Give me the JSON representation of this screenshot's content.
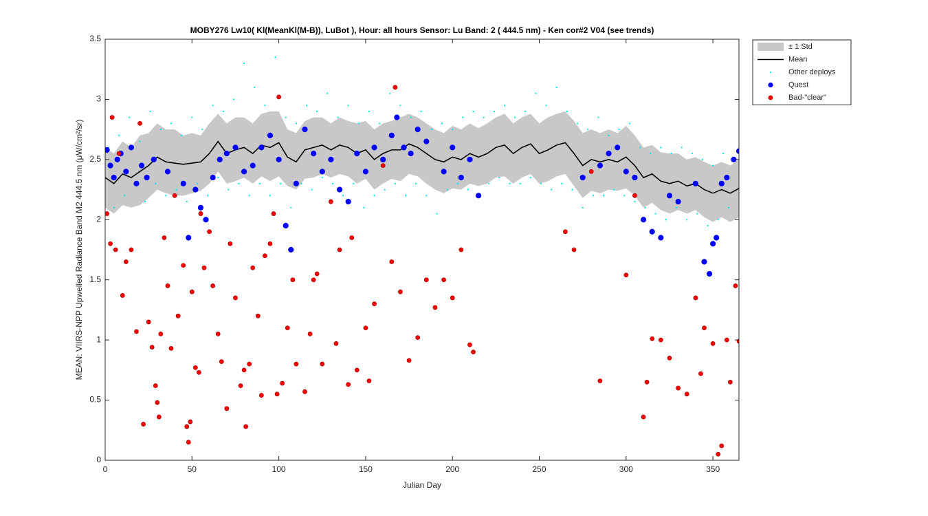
{
  "chart_data": {
    "type": "scatter",
    "title": "MOBY276   Lw10( Kl(MeanKl(M-B)), LuBot ),   Hour: all hours  Sensor: Lu Band: 2 ( 444.5 nm)  - Ken cor#2 V04 (see trends)",
    "xlabel": "Julian Day",
    "ylabel": "MEAN: VIIRS-NPP Upwelled Radiance Band M2 444.5 nm (μW/cm²/sr)",
    "xlim": [
      0,
      365
    ],
    "ylim": [
      0,
      3.5
    ],
    "xticks": [
      0,
      50,
      100,
      150,
      200,
      250,
      300,
      350
    ],
    "yticks": [
      0,
      0.5,
      1,
      1.5,
      2,
      2.5,
      3,
      3.5
    ],
    "grid": false,
    "legend": "northeastoutside",
    "series": [
      {
        "name": "± 1 Std",
        "kind": "band",
        "color": "#c8c8c8",
        "x": [
          0,
          5,
          10,
          15,
          20,
          25,
          30,
          35,
          40,
          45,
          50,
          55,
          60,
          65,
          70,
          75,
          80,
          85,
          90,
          95,
          100,
          105,
          110,
          115,
          120,
          125,
          130,
          135,
          140,
          145,
          150,
          155,
          160,
          165,
          170,
          175,
          180,
          185,
          190,
          195,
          200,
          205,
          210,
          215,
          220,
          225,
          230,
          235,
          240,
          245,
          250,
          255,
          260,
          265,
          270,
          275,
          280,
          285,
          290,
          295,
          300,
          305,
          310,
          315,
          320,
          325,
          330,
          335,
          340,
          345,
          350,
          355,
          360,
          365
        ],
        "values": [
          2.1,
          2.05,
          2.12,
          2.1,
          2.12,
          2.18,
          2.25,
          2.22,
          2.2,
          2.2,
          2.22,
          2.24,
          2.3,
          2.4,
          2.3,
          2.32,
          2.35,
          2.3,
          2.36,
          2.32,
          2.36,
          2.28,
          2.25,
          2.34,
          2.35,
          2.38,
          2.35,
          2.38,
          2.36,
          2.3,
          2.34,
          2.25,
          2.3,
          2.34,
          2.32,
          2.38,
          2.36,
          2.3,
          2.25,
          2.22,
          2.26,
          2.25,
          2.3,
          2.28,
          2.3,
          2.35,
          2.36,
          2.3,
          2.35,
          2.38,
          2.3,
          2.32,
          2.36,
          2.38,
          2.28,
          2.18,
          2.24,
          2.22,
          2.25,
          2.24,
          2.26,
          2.2,
          2.1,
          2.14,
          2.08,
          2.05,
          2.08,
          2.05,
          2.08,
          2.02,
          1.98,
          2.02,
          1.98,
          2.02
        ],
        "upper": [
          2.6,
          2.55,
          2.65,
          2.6,
          2.7,
          2.72,
          2.8,
          2.75,
          2.75,
          2.7,
          2.72,
          2.7,
          2.8,
          2.88,
          2.8,
          2.85,
          2.85,
          2.8,
          2.88,
          2.9,
          2.9,
          2.75,
          2.72,
          2.82,
          2.85,
          2.85,
          2.8,
          2.85,
          2.82,
          2.8,
          2.82,
          2.75,
          2.8,
          2.82,
          2.85,
          2.88,
          2.85,
          2.8,
          2.75,
          2.72,
          2.78,
          2.75,
          2.8,
          2.76,
          2.8,
          2.85,
          2.88,
          2.8,
          2.85,
          2.88,
          2.8,
          2.85,
          2.88,
          2.9,
          2.82,
          2.72,
          2.75,
          2.72,
          2.75,
          2.72,
          2.78,
          2.7,
          2.6,
          2.62,
          2.56,
          2.55,
          2.55,
          2.5,
          2.52,
          2.48,
          2.45,
          2.48,
          2.45,
          2.5
        ]
      },
      {
        "name": "Mean",
        "kind": "line",
        "color": "#000000",
        "x": [
          0,
          5,
          10,
          15,
          20,
          25,
          30,
          35,
          40,
          45,
          50,
          55,
          60,
          65,
          70,
          75,
          80,
          85,
          90,
          95,
          100,
          105,
          110,
          115,
          120,
          125,
          130,
          135,
          140,
          145,
          150,
          155,
          160,
          165,
          170,
          175,
          180,
          185,
          190,
          195,
          200,
          205,
          210,
          215,
          220,
          225,
          230,
          235,
          240,
          245,
          250,
          255,
          260,
          265,
          270,
          275,
          280,
          285,
          290,
          295,
          300,
          305,
          310,
          315,
          320,
          325,
          330,
          335,
          340,
          345,
          350,
          355,
          360,
          365
        ],
        "values": [
          2.35,
          2.3,
          2.38,
          2.35,
          2.4,
          2.45,
          2.52,
          2.48,
          2.47,
          2.46,
          2.47,
          2.48,
          2.55,
          2.65,
          2.55,
          2.58,
          2.6,
          2.55,
          2.62,
          2.6,
          2.64,
          2.52,
          2.48,
          2.58,
          2.6,
          2.62,
          2.58,
          2.62,
          2.6,
          2.55,
          2.58,
          2.5,
          2.55,
          2.58,
          2.58,
          2.63,
          2.6,
          2.55,
          2.5,
          2.48,
          2.52,
          2.5,
          2.55,
          2.52,
          2.55,
          2.6,
          2.62,
          2.55,
          2.6,
          2.63,
          2.55,
          2.58,
          2.62,
          2.64,
          2.55,
          2.45,
          2.5,
          2.48,
          2.5,
          2.48,
          2.52,
          2.45,
          2.35,
          2.38,
          2.32,
          2.3,
          2.32,
          2.28,
          2.3,
          2.25,
          2.22,
          2.25,
          2.22,
          2.26
        ]
      },
      {
        "name": "Other deploys",
        "kind": "dots",
        "color": "#00e5ee",
        "x": [
          2,
          5,
          8,
          11,
          14,
          17,
          20,
          23,
          26,
          29,
          32,
          35,
          38,
          41,
          44,
          47,
          50,
          53,
          56,
          59,
          62,
          65,
          68,
          71,
          74,
          77,
          80,
          83,
          86,
          89,
          92,
          95,
          98,
          101,
          104,
          107,
          110,
          113,
          116,
          119,
          122,
          125,
          128,
          131,
          134,
          137,
          140,
          143,
          146,
          149,
          152,
          155,
          158,
          161,
          164,
          167,
          170,
          173,
          176,
          179,
          182,
          185,
          188,
          191,
          194,
          197,
          200,
          203,
          206,
          209,
          212,
          215,
          218,
          221,
          224,
          227,
          230,
          233,
          236,
          239,
          242,
          245,
          248,
          251,
          254,
          257,
          260,
          263,
          266,
          269,
          272,
          275,
          278,
          281,
          284,
          287,
          290,
          293,
          296,
          299,
          302,
          305,
          308,
          311,
          314,
          317,
          320,
          323,
          326,
          329,
          332,
          335,
          338,
          341,
          344,
          347,
          350,
          353,
          356,
          359,
          362
        ],
        "values": [
          2.6,
          2.1,
          2.7,
          2.2,
          2.85,
          2.3,
          2.65,
          2.15,
          2.9,
          2.3,
          2.75,
          2.2,
          2.8,
          2.25,
          2.7,
          2.15,
          2.85,
          2.3,
          2.75,
          2.2,
          2.95,
          2.35,
          2.9,
          2.25,
          3.0,
          2.3,
          3.3,
          2.2,
          3.1,
          2.3,
          2.95,
          2.2,
          3.35,
          2.3,
          2.85,
          2.1,
          2.8,
          2.3,
          2.95,
          2.25,
          2.9,
          2.35,
          3.05,
          2.3,
          2.85,
          2.2,
          2.95,
          2.3,
          2.8,
          2.1,
          2.9,
          2.2,
          2.8,
          2.25,
          3.05,
          2.3,
          2.95,
          2.2,
          2.85,
          2.3,
          2.9,
          2.2,
          2.75,
          2.05,
          2.8,
          2.25,
          2.75,
          2.3,
          2.85,
          2.25,
          2.9,
          2.2,
          2.85,
          2.3,
          2.9,
          2.35,
          2.95,
          2.3,
          2.85,
          2.3,
          2.9,
          2.35,
          3.05,
          2.3,
          2.95,
          2.25,
          3.1,
          2.3,
          2.9,
          2.25,
          2.8,
          2.1,
          2.75,
          2.2,
          2.85,
          2.2,
          2.7,
          2.25,
          2.75,
          2.2,
          2.8,
          2.15,
          2.6,
          2.1,
          2.55,
          2.05,
          2.6,
          2.0,
          2.55,
          2.1,
          2.6,
          2.0,
          2.55,
          2.05,
          2.5,
          1.95,
          2.45,
          2.0,
          2.55,
          2.1,
          2.5
        ]
      },
      {
        "name": "Quest",
        "kind": "quest",
        "color": "#0000ff",
        "x": [
          1,
          3,
          5,
          7,
          9,
          12,
          15,
          18,
          21,
          24,
          28,
          36,
          45,
          48,
          52,
          55,
          58,
          62,
          66,
          70,
          75,
          80,
          85,
          90,
          95,
          100,
          104,
          107,
          110,
          115,
          120,
          125,
          130,
          135,
          140,
          145,
          150,
          155,
          160,
          165,
          168,
          172,
          176,
          180,
          185,
          195,
          200,
          205,
          210,
          215,
          275,
          285,
          290,
          295,
          300,
          305,
          310,
          315,
          320,
          325,
          330,
          340,
          345,
          348,
          350,
          352,
          355,
          358,
          362,
          365
        ],
        "values": [
          2.58,
          2.45,
          2.35,
          2.5,
          2.55,
          2.4,
          2.6,
          2.3,
          2.45,
          2.35,
          2.5,
          2.4,
          2.3,
          1.85,
          2.25,
          2.1,
          2.0,
          2.35,
          2.5,
          2.55,
          2.6,
          2.4,
          2.45,
          2.6,
          2.7,
          2.5,
          1.95,
          1.75,
          2.3,
          2.75,
          2.55,
          2.4,
          2.5,
          2.25,
          2.15,
          2.55,
          2.4,
          2.6,
          2.5,
          2.7,
          2.85,
          2.6,
          2.55,
          2.75,
          2.65,
          2.4,
          2.6,
          2.35,
          2.5,
          2.2,
          2.35,
          2.45,
          2.55,
          2.6,
          2.4,
          2.35,
          2.0,
          1.9,
          1.85,
          2.2,
          2.15,
          2.3,
          1.65,
          1.55,
          1.8,
          1.85,
          2.3,
          2.35,
          2.5,
          2.57
        ]
      },
      {
        "name": "Bad-\"clear\"",
        "kind": "bad",
        "color": "#ff0000",
        "x": [
          1,
          3,
          4,
          6,
          8,
          10,
          12,
          15,
          18,
          20,
          22,
          25,
          27,
          29,
          30,
          31,
          32,
          34,
          36,
          38,
          40,
          42,
          45,
          47,
          48,
          49,
          50,
          52,
          54,
          55,
          57,
          60,
          62,
          65,
          67,
          70,
          72,
          75,
          78,
          80,
          81,
          83,
          85,
          88,
          90,
          92,
          95,
          97,
          99,
          100,
          102,
          105,
          108,
          110,
          115,
          118,
          120,
          122,
          125,
          130,
          133,
          135,
          140,
          142,
          145,
          150,
          152,
          155,
          160,
          165,
          167,
          170,
          175,
          180,
          185,
          190,
          195,
          200,
          205,
          210,
          212,
          265,
          270,
          280,
          285,
          300,
          305,
          310,
          312,
          315,
          320,
          325,
          330,
          335,
          340,
          343,
          345,
          350,
          353,
          355,
          358,
          360,
          363,
          365
        ],
        "values": [
          2.05,
          1.8,
          2.85,
          1.75,
          2.55,
          1.37,
          1.65,
          1.75,
          1.07,
          2.8,
          0.3,
          1.15,
          0.94,
          0.62,
          0.48,
          0.36,
          1.05,
          1.85,
          1.45,
          0.93,
          2.2,
          1.2,
          1.62,
          0.28,
          0.15,
          0.32,
          1.4,
          0.77,
          0.73,
          2.05,
          1.6,
          1.9,
          1.45,
          1.05,
          0.82,
          0.43,
          1.8,
          1.35,
          0.62,
          0.75,
          0.28,
          0.8,
          1.6,
          1.2,
          0.54,
          1.7,
          1.8,
          2.05,
          0.55,
          3.02,
          0.64,
          1.1,
          1.5,
          0.8,
          0.57,
          1.05,
          1.5,
          1.55,
          0.8,
          2.15,
          0.97,
          1.75,
          0.63,
          1.85,
          0.75,
          1.1,
          0.66,
          1.3,
          2.45,
          1.65,
          3.1,
          1.4,
          0.83,
          1.02,
          1.5,
          1.27,
          1.5,
          1.35,
          1.75,
          0.96,
          0.9,
          1.9,
          1.75,
          2.4,
          0.66,
          1.54,
          2.2,
          0.36,
          0.65,
          1.01,
          1.0,
          0.85,
          0.6,
          0.55,
          1.35,
          0.72,
          1.1,
          0.97,
          0.05,
          0.12,
          1.0,
          0.65,
          1.45,
          0.99
        ]
      }
    ]
  }
}
